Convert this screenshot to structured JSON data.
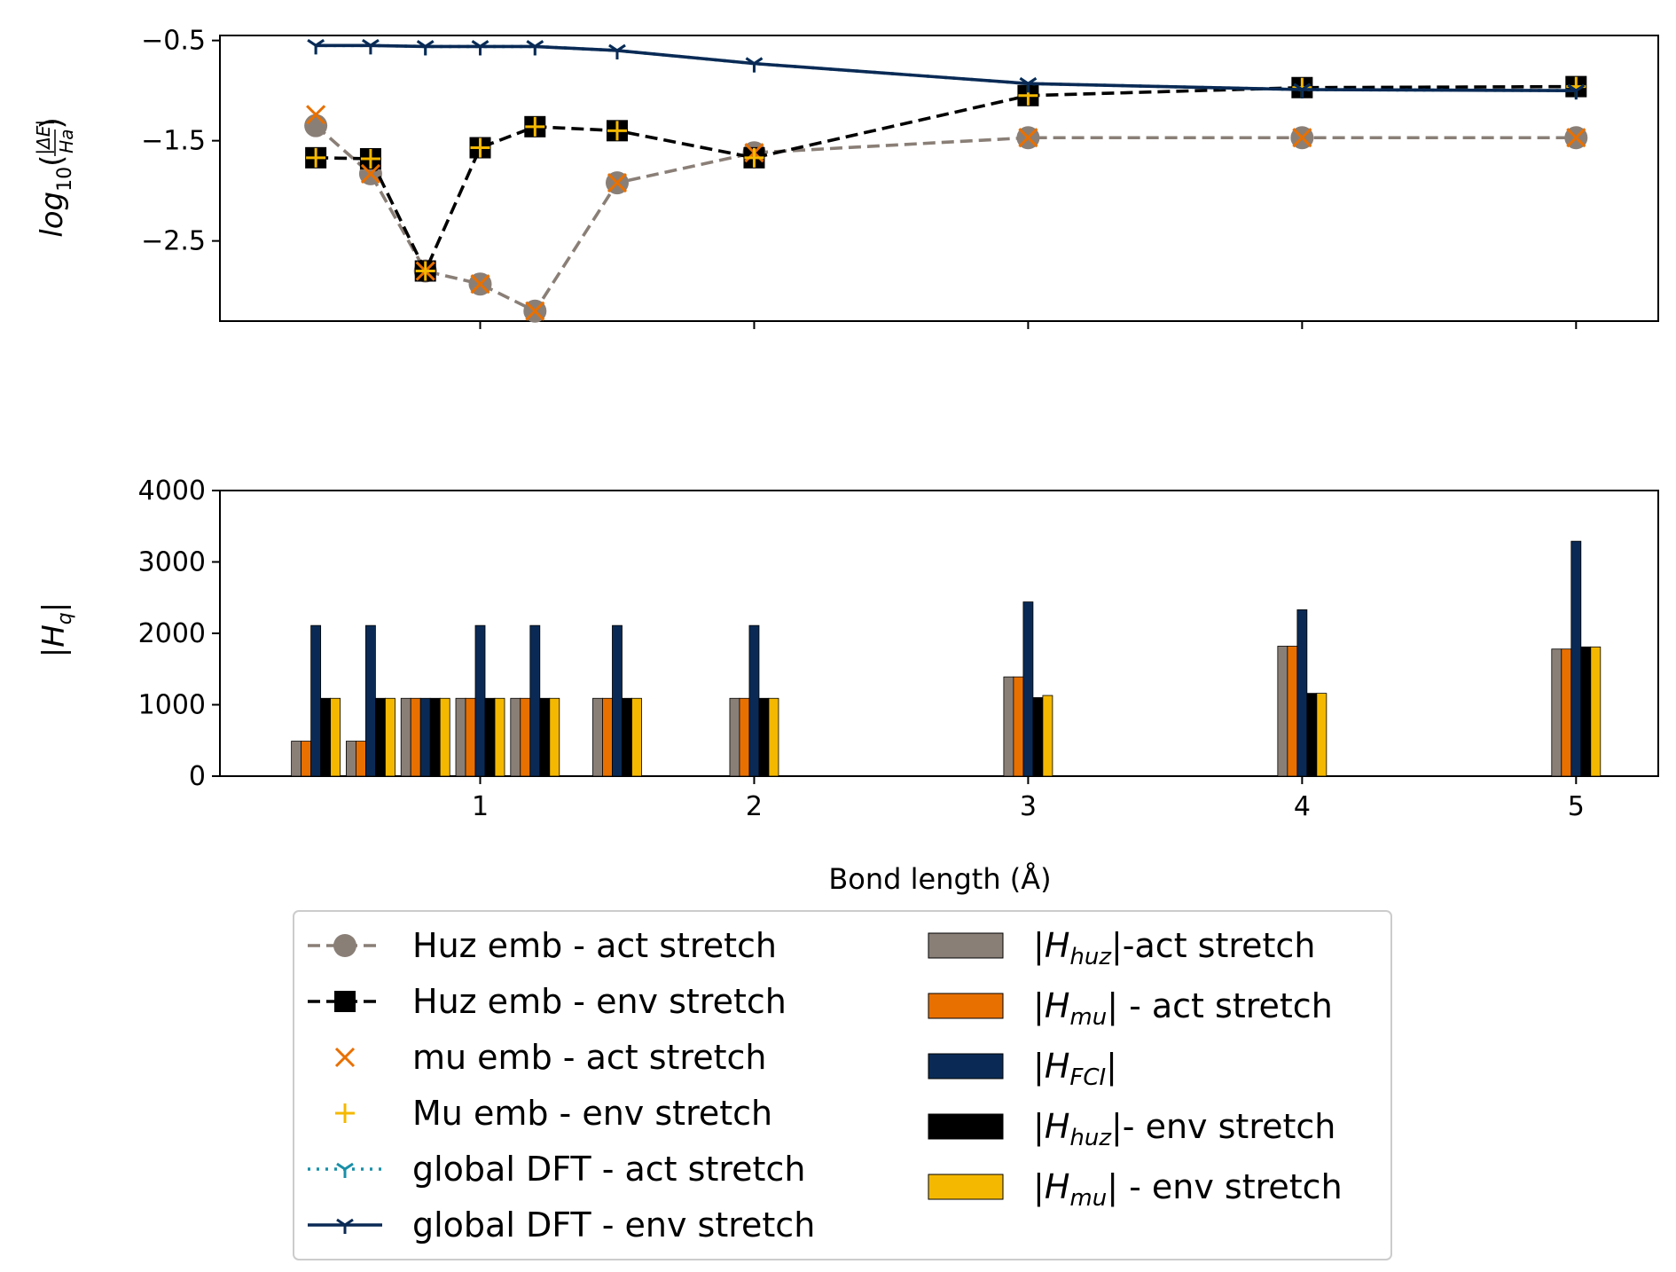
{
  "chart_data": [
    {
      "type": "line",
      "ylabel": "log10(|ΔE|/Ha)",
      "xlim": [
        0.05,
        5.3
      ],
      "ylim": [
        -3.3,
        -0.45
      ],
      "yticks": [
        -0.5,
        -1.5,
        -2.5
      ],
      "ytick_labels": [
        "−0.5",
        "−1.5",
        "−2.5"
      ],
      "xticks": [
        1,
        2,
        3,
        4,
        5
      ],
      "series": [
        {
          "name": "Huz emb - act stretch",
          "style": "dashed",
          "marker": "circle",
          "color": "#8a7f77",
          "x": [
            0.4,
            0.6,
            0.8,
            1.0,
            1.2,
            1.5,
            2.0,
            3.0,
            4.0,
            5.0
          ],
          "y": [
            -1.35,
            -1.83,
            -2.8,
            -2.93,
            -3.2,
            -1.92,
            -1.62,
            -1.47,
            -1.47,
            -1.47
          ]
        },
        {
          "name": "Huz emb - env stretch",
          "style": "dashed",
          "marker": "square",
          "color": "#000000",
          "x": [
            0.4,
            0.6,
            0.8,
            1.0,
            1.2,
            1.5,
            2.0,
            3.0,
            4.0,
            5.0
          ],
          "y": [
            -1.67,
            -1.68,
            -2.8,
            -1.57,
            -1.36,
            -1.4,
            -1.67,
            -1.05,
            -0.97,
            -0.96
          ]
        },
        {
          "name": "mu emb - act stretch",
          "style": "none",
          "marker": "x",
          "color": "#e87000",
          "x": [
            0.4,
            0.6,
            0.8,
            1.0,
            1.2,
            1.5,
            2.0,
            3.0,
            4.0,
            5.0
          ],
          "y": [
            -1.24,
            -1.83,
            -2.8,
            -2.93,
            -3.2,
            -1.92,
            -1.62,
            -1.47,
            -1.47,
            -1.47
          ]
        },
        {
          "name": "Mu emb - env stretch",
          "style": "none",
          "marker": "plus",
          "color": "#f5b800",
          "x": [
            0.4,
            0.6,
            0.8,
            1.0,
            1.2,
            1.5,
            2.0,
            3.0,
            4.0,
            5.0
          ],
          "y": [
            -1.67,
            -1.68,
            -2.8,
            -1.57,
            -1.36,
            -1.4,
            -1.67,
            -1.05,
            -0.97,
            -0.96
          ]
        },
        {
          "name": "global DFT - act stretch",
          "style": "dotted",
          "marker": "tri",
          "color": "#1a8fa8",
          "x": [
            0.4,
            0.6,
            0.8,
            1.0,
            1.2,
            1.5,
            2.0,
            3.0,
            4.0,
            5.0
          ],
          "y": [
            -0.55,
            -0.55,
            -0.56,
            -0.56,
            -0.56,
            -0.6,
            -0.73,
            -0.93,
            -0.99,
            -1.0
          ]
        },
        {
          "name": "global DFT - env stretch",
          "style": "solid",
          "marker": "tri",
          "color": "#0a2a55",
          "x": [
            0.4,
            0.6,
            0.8,
            1.0,
            1.2,
            1.5,
            2.0,
            3.0,
            4.0,
            5.0
          ],
          "y": [
            -0.55,
            -0.55,
            -0.56,
            -0.56,
            -0.56,
            -0.6,
            -0.73,
            -0.93,
            -0.99,
            -1.0
          ]
        }
      ]
    },
    {
      "type": "bar",
      "xlabel": "Bond length (Å)",
      "ylabel": "|Hq|",
      "xlim": [
        0.05,
        5.3
      ],
      "ylim": [
        0,
        4000
      ],
      "yticks": [
        0,
        1000,
        2000,
        3000,
        4000
      ],
      "xticks": [
        1,
        2,
        3,
        4,
        5
      ],
      "categories": [
        0.4,
        0.6,
        0.8,
        1.0,
        1.2,
        1.5,
        2.0,
        3.0,
        4.0,
        5.0
      ],
      "series": [
        {
          "name": "|H_huz|-act stretch",
          "color": "#8a7f77",
          "values": [
            490,
            490,
            1090,
            1090,
            1090,
            1090,
            1090,
            1390,
            1820,
            1780
          ]
        },
        {
          "name": "|H_mu| - act stretch",
          "color": "#e87000",
          "values": [
            490,
            490,
            1090,
            1090,
            1090,
            1090,
            1090,
            1390,
            1820,
            1780
          ]
        },
        {
          "name": "|H_FCI|",
          "color": "#0a2a55",
          "values": [
            2110,
            2110,
            1090,
            2110,
            2110,
            2110,
            2110,
            2440,
            2330,
            3290
          ]
        },
        {
          "name": "|H_huz|- env stretch",
          "color": "#000000",
          "values": [
            1090,
            1090,
            1090,
            1090,
            1090,
            1090,
            1090,
            1100,
            1160,
            1810
          ]
        },
        {
          "name": "|H_mu| - env stretch",
          "color": "#f5b800",
          "values": [
            1090,
            1090,
            1090,
            1090,
            1090,
            1090,
            1090,
            1130,
            1160,
            1810
          ]
        }
      ]
    }
  ],
  "legend": {
    "placement": "bottom",
    "left_entries": [
      {
        "label": "Huz emb - act stretch"
      },
      {
        "label": "Huz emb - env stretch"
      },
      {
        "label": "mu emb - act stretch"
      },
      {
        "label": "Mu emb - env stretch"
      },
      {
        "label": "global DFT - act stretch"
      },
      {
        "label": "global DFT - env stretch"
      }
    ],
    "right_entries": [
      {
        "sym": "H",
        "sub": "huz",
        "suffix": "-act stretch",
        "color": "#8a7f77"
      },
      {
        "sym": "H",
        "sub": "mu",
        "suffix": " - act stretch",
        "color": "#e87000"
      },
      {
        "sym": "H",
        "sub": "FCI",
        "suffix": "",
        "color": "#0a2a55"
      },
      {
        "sym": "H",
        "sub": "huz",
        "suffix": "- env stretch",
        "color": "#000000"
      },
      {
        "sym": "H",
        "sub": "mu",
        "suffix": " - env stretch",
        "color": "#f5b800"
      }
    ]
  }
}
